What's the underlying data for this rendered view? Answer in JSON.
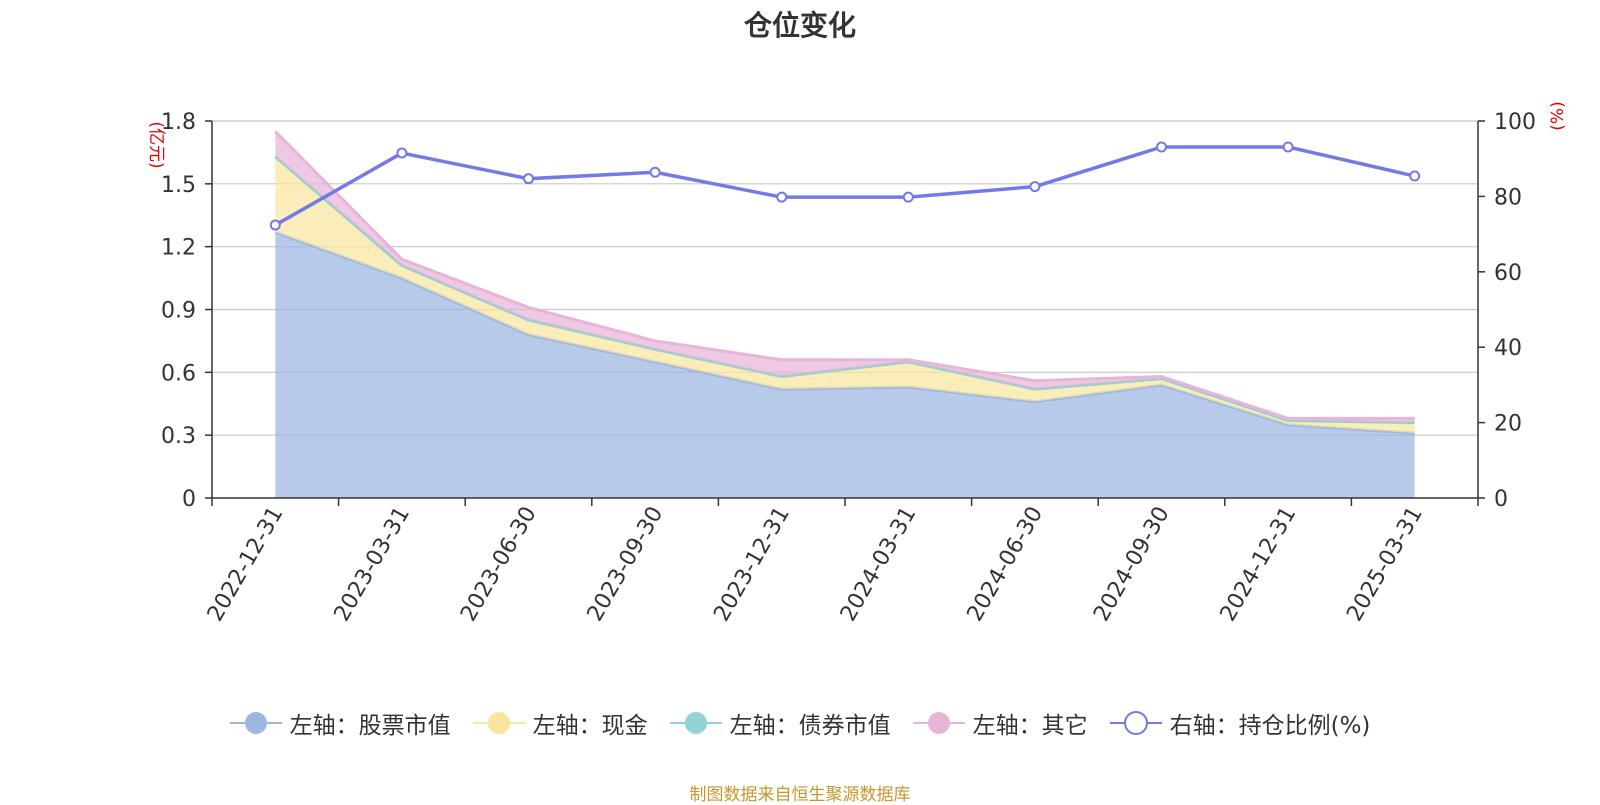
{
  "title": "仓位变化",
  "source": "制图数据来自恒生聚源数据库",
  "chart_data": {
    "type": "area",
    "title": "仓位变化",
    "categories": [
      "2022-12-31",
      "2023-03-31",
      "2023-06-30",
      "2023-09-30",
      "2023-12-31",
      "2024-03-31",
      "2024-06-30",
      "2024-09-30",
      "2024-12-31",
      "2025-03-31"
    ],
    "left_axis": {
      "label": "(亿元)",
      "range": [
        0,
        1.8
      ],
      "ticks": [
        "0",
        "0.3",
        "0.6",
        "0.9",
        "1.2",
        "1.5",
        "1.8"
      ]
    },
    "right_axis": {
      "label": "(%)",
      "range": [
        0,
        100
      ],
      "ticks": [
        "0",
        "20",
        "40",
        "60",
        "80",
        "100"
      ]
    },
    "grid": true,
    "legend_position": "bottom",
    "series": [
      {
        "name": "左轴：股票市值",
        "axis": "left",
        "type": "area",
        "color": "#9cb6e0",
        "values": [
          1.27,
          1.05,
          0.78,
          0.65,
          0.52,
          0.53,
          0.46,
          0.54,
          0.35,
          0.31
        ]
      },
      {
        "name": "左轴：现金",
        "axis": "left",
        "type": "area",
        "color": "#f8e6a0",
        "values": [
          0.36,
          0.06,
          0.07,
          0.06,
          0.06,
          0.12,
          0.06,
          0.03,
          0.02,
          0.05
        ]
      },
      {
        "name": "左轴：债券市值",
        "axis": "left",
        "type": "area",
        "color": "#8fd3d3",
        "values": [
          0,
          0,
          0,
          0,
          0,
          0,
          0,
          0,
          0,
          0
        ]
      },
      {
        "name": "左轴：其它",
        "axis": "left",
        "type": "area",
        "color": "#e8b4d8",
        "values": [
          0.12,
          0.03,
          0.06,
          0.04,
          0.08,
          0.01,
          0.04,
          0.01,
          0.01,
          0.02
        ]
      },
      {
        "name": "右轴：持仓比例(%)",
        "axis": "right",
        "type": "line",
        "color": "#7479e8",
        "values": [
          72.4,
          91.5,
          84.7,
          86.4,
          79.8,
          79.8,
          82.6,
          93.1,
          93.1,
          85.4
        ]
      }
    ]
  }
}
